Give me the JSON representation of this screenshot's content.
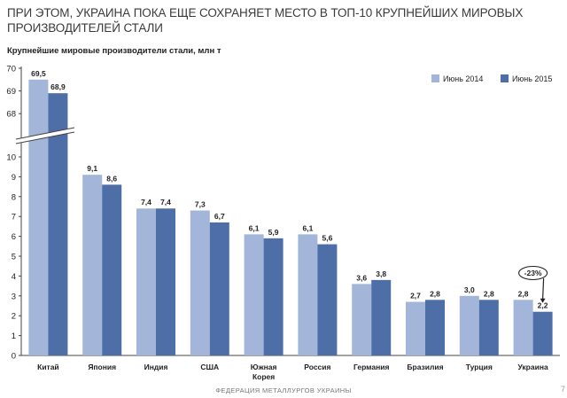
{
  "slide": {
    "title": "ПРИ ЭТОМ, УКРАИНА ПОКА ЕЩЕ СОХРАНЯЕТ МЕСТО В ТОП-10 КРУПНЕЙШИХ МИРОВЫХ ПРОИЗВОДИТЕЛЕЙ СТАЛИ",
    "footer": "ФЕДЕРАЦИЯ МЕТАЛЛУРГОВ УКРАИНЫ",
    "page_number": "7"
  },
  "chart_data": {
    "type": "bar",
    "title": "Крупнейшие мировые производители стали, млн т",
    "categories": [
      "Китай",
      "Япония",
      "Индия",
      "США",
      "Южная Корея",
      "Россия",
      "Германия",
      "Бразилия",
      "Турция",
      "Украина"
    ],
    "series": [
      {
        "name": "Июнь 2014",
        "values": [
          69.5,
          9.1,
          7.4,
          7.3,
          6.1,
          6.1,
          3.6,
          2.7,
          3.0,
          2.8
        ],
        "labels": [
          "69,5",
          "9,1",
          "7,4",
          "7,3",
          "6,1",
          "6,1",
          "3,6",
          "2,7",
          "3,0",
          "2,8"
        ],
        "color": "#a3b6d9"
      },
      {
        "name": "Июнь 2015",
        "values": [
          68.9,
          8.6,
          7.4,
          6.7,
          5.9,
          5.6,
          3.8,
          2.8,
          2.8,
          2.2
        ],
        "labels": [
          "68,9",
          "8,6",
          "7,4",
          "6,7",
          "5,9",
          "5,6",
          "3,8",
          "2,8",
          "2,8",
          "2,2"
        ],
        "color": "#4e6ea8"
      }
    ],
    "yaxis_lower": {
      "range": [
        0,
        10
      ],
      "ticks": [
        "0",
        "1",
        "2",
        "3",
        "4",
        "5",
        "6",
        "7",
        "8",
        "9",
        "10"
      ]
    },
    "yaxis_upper": {
      "range": [
        67.5,
        70
      ],
      "ticks": [
        "68",
        "69",
        "70"
      ]
    },
    "axis_break": true,
    "grid": false,
    "legend_position": "top-right",
    "annotation": {
      "category": "Украина",
      "text": "-23%"
    }
  }
}
